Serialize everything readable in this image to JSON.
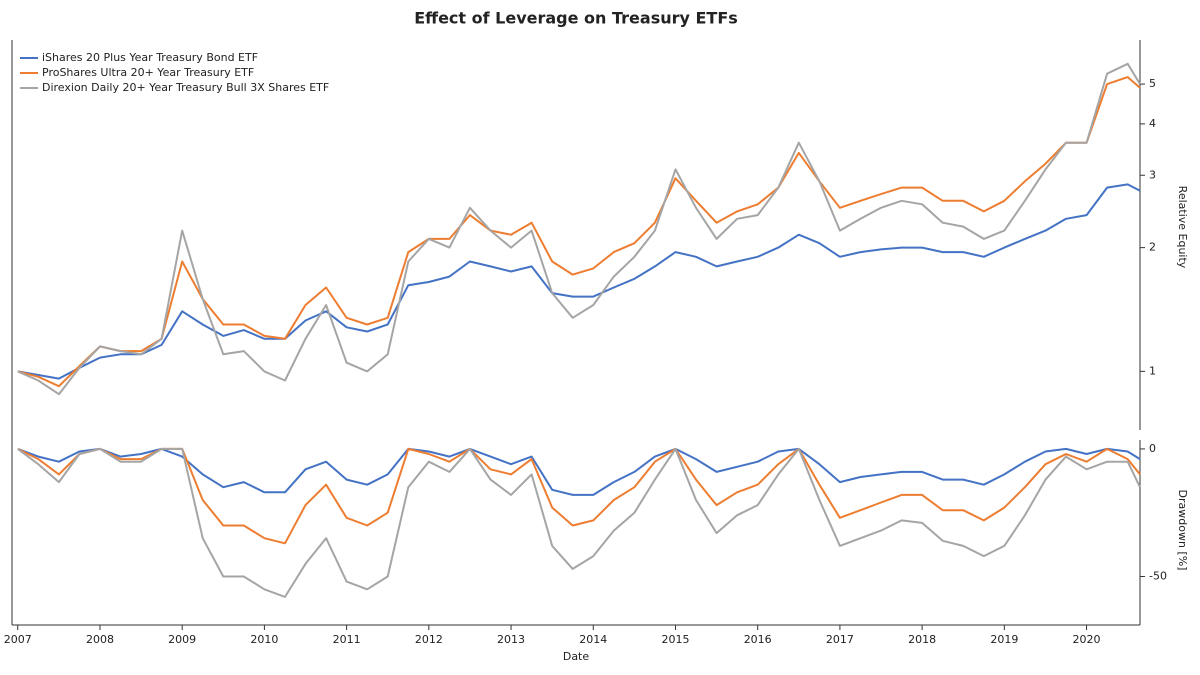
{
  "chart_data": [
    {
      "type": "line",
      "title": "Effect of Leverage on Treasury ETFs",
      "ylabel": "Relative Equity",
      "log_scale": true,
      "legend": "upper left",
      "xlim": [
        2006.93,
        2020.65
      ],
      "ylim": [
        0.72,
        6.4
      ],
      "yticks": [
        1,
        2,
        3,
        4,
        5
      ],
      "x": [
        2007,
        2007.25,
        2007.5,
        2007.75,
        2008,
        2008.25,
        2008.5,
        2008.75,
        2009,
        2009.25,
        2009.5,
        2009.75,
        2010,
        2010.25,
        2010.5,
        2010.75,
        2011,
        2011.25,
        2011.5,
        2011.75,
        2012,
        2012.25,
        2012.5,
        2012.75,
        2013,
        2013.25,
        2013.5,
        2013.75,
        2014,
        2014.25,
        2014.5,
        2014.75,
        2015,
        2015.25,
        2015.5,
        2015.75,
        2016,
        2016.25,
        2016.5,
        2016.75,
        2017,
        2017.25,
        2017.5,
        2017.75,
        2018,
        2018.25,
        2018.5,
        2018.75,
        2019,
        2019.25,
        2019.5,
        2019.75,
        2020,
        2020.25,
        2020.5,
        2020.65
      ],
      "series": [
        {
          "name": "iShares 20 Plus Year Treasury Bond ETF",
          "color": "#4472c4",
          "values": [
            1.0,
            0.98,
            0.96,
            1.02,
            1.08,
            1.1,
            1.1,
            1.16,
            1.4,
            1.3,
            1.22,
            1.26,
            1.2,
            1.2,
            1.33,
            1.4,
            1.28,
            1.25,
            1.3,
            1.62,
            1.65,
            1.7,
            1.85,
            1.8,
            1.75,
            1.8,
            1.55,
            1.52,
            1.52,
            1.6,
            1.68,
            1.8,
            1.95,
            1.9,
            1.8,
            1.85,
            1.9,
            2.0,
            2.15,
            2.05,
            1.9,
            1.95,
            1.98,
            2.0,
            2.0,
            1.95,
            1.95,
            1.9,
            2.0,
            2.1,
            2.2,
            2.35,
            2.4,
            2.8,
            2.85,
            2.75
          ]
        },
        {
          "name": "ProShares Ultra 20+ Year Treasury ETF",
          "color": "#ed7d31",
          "values": [
            1.0,
            0.97,
            0.92,
            1.03,
            1.15,
            1.12,
            1.12,
            1.2,
            1.85,
            1.5,
            1.3,
            1.3,
            1.22,
            1.2,
            1.45,
            1.6,
            1.35,
            1.3,
            1.35,
            1.95,
            2.1,
            2.1,
            2.4,
            2.2,
            2.15,
            2.3,
            1.85,
            1.72,
            1.78,
            1.95,
            2.05,
            2.3,
            2.95,
            2.6,
            2.3,
            2.45,
            2.55,
            2.8,
            3.4,
            2.9,
            2.5,
            2.6,
            2.7,
            2.8,
            2.8,
            2.6,
            2.6,
            2.45,
            2.6,
            2.9,
            3.2,
            3.6,
            3.6,
            5.0,
            5.2,
            4.9
          ]
        },
        {
          "name": "Direxion Daily 20+ Year Treasury Bull 3X Shares ETF",
          "color": "#a5a5a5",
          "values": [
            1.0,
            0.95,
            0.88,
            1.02,
            1.15,
            1.12,
            1.1,
            1.2,
            2.2,
            1.5,
            1.1,
            1.12,
            1.0,
            0.95,
            1.2,
            1.45,
            1.05,
            1.0,
            1.1,
            1.85,
            2.1,
            2.0,
            2.5,
            2.2,
            2.0,
            2.2,
            1.55,
            1.35,
            1.45,
            1.7,
            1.9,
            2.2,
            3.1,
            2.5,
            2.1,
            2.35,
            2.4,
            2.8,
            3.6,
            2.9,
            2.2,
            2.35,
            2.5,
            2.6,
            2.55,
            2.3,
            2.25,
            2.1,
            2.2,
            2.6,
            3.1,
            3.6,
            3.6,
            5.3,
            5.6,
            5.0
          ]
        }
      ]
    },
    {
      "type": "line",
      "ylabel": "Drawdown [%]",
      "xlabel": "Date",
      "xlim": [
        2006.93,
        2020.65
      ],
      "xticks": [
        2007,
        2008,
        2009,
        2010,
        2011,
        2012,
        2013,
        2014,
        2015,
        2016,
        2017,
        2018,
        2019,
        2020
      ],
      "ylim": [
        -69,
        3.5
      ],
      "yticks": [
        -50,
        0
      ],
      "x": [
        2007,
        2007.25,
        2007.5,
        2007.75,
        2008,
        2008.25,
        2008.5,
        2008.75,
        2009,
        2009.25,
        2009.5,
        2009.75,
        2010,
        2010.25,
        2010.5,
        2010.75,
        2011,
        2011.25,
        2011.5,
        2011.75,
        2012,
        2012.25,
        2012.5,
        2012.75,
        2013,
        2013.25,
        2013.5,
        2013.75,
        2014,
        2014.25,
        2014.5,
        2014.75,
        2015,
        2015.25,
        2015.5,
        2015.75,
        2016,
        2016.25,
        2016.5,
        2016.75,
        2017,
        2017.25,
        2017.5,
        2017.75,
        2018,
        2018.25,
        2018.5,
        2018.75,
        2019,
        2019.25,
        2019.5,
        2019.75,
        2020,
        2020.25,
        2020.5,
        2020.65
      ],
      "series": [
        {
          "color": "#4472c4",
          "values": [
            0,
            -3,
            -5,
            -1,
            0,
            -3,
            -2,
            0,
            -3,
            -10,
            -15,
            -13,
            -17,
            -17,
            -8,
            -5,
            -12,
            -14,
            -10,
            0,
            -1,
            -3,
            0,
            -3,
            -6,
            -3,
            -16,
            -18,
            -18,
            -13,
            -9,
            -3,
            0,
            -4,
            -9,
            -7,
            -5,
            -1,
            0,
            -6,
            -13,
            -11,
            -10,
            -9,
            -9,
            -12,
            -12,
            -14,
            -10,
            -5,
            -1,
            0,
            -2,
            0,
            -1,
            -4
          ]
        },
        {
          "color": "#ed7d31",
          "values": [
            0,
            -4,
            -10,
            -2,
            0,
            -4,
            -4,
            0,
            0,
            -20,
            -30,
            -30,
            -35,
            -37,
            -22,
            -14,
            -27,
            -30,
            -25,
            0,
            -2,
            -5,
            0,
            -8,
            -10,
            -4,
            -23,
            -30,
            -28,
            -20,
            -15,
            -5,
            0,
            -12,
            -22,
            -17,
            -14,
            -6,
            0,
            -14,
            -27,
            -24,
            -21,
            -18,
            -18,
            -24,
            -24,
            -28,
            -23,
            -15,
            -6,
            -2,
            -5,
            0,
            -4,
            -10
          ]
        },
        {
          "color": "#a5a5a5",
          "values": [
            0,
            -6,
            -13,
            -2,
            0,
            -5,
            -5,
            0,
            0,
            -35,
            -50,
            -50,
            -55,
            -58,
            -45,
            -35,
            -52,
            -55,
            -50,
            -15,
            -5,
            -9,
            0,
            -12,
            -18,
            -10,
            -38,
            -47,
            -42,
            -32,
            -25,
            -12,
            0,
            -20,
            -33,
            -26,
            -22,
            -10,
            0,
            -20,
            -38,
            -35,
            -32,
            -28,
            -29,
            -36,
            -38,
            -42,
            -38,
            -26,
            -12,
            -3,
            -8,
            -5,
            -5,
            -15
          ]
        }
      ]
    }
  ]
}
